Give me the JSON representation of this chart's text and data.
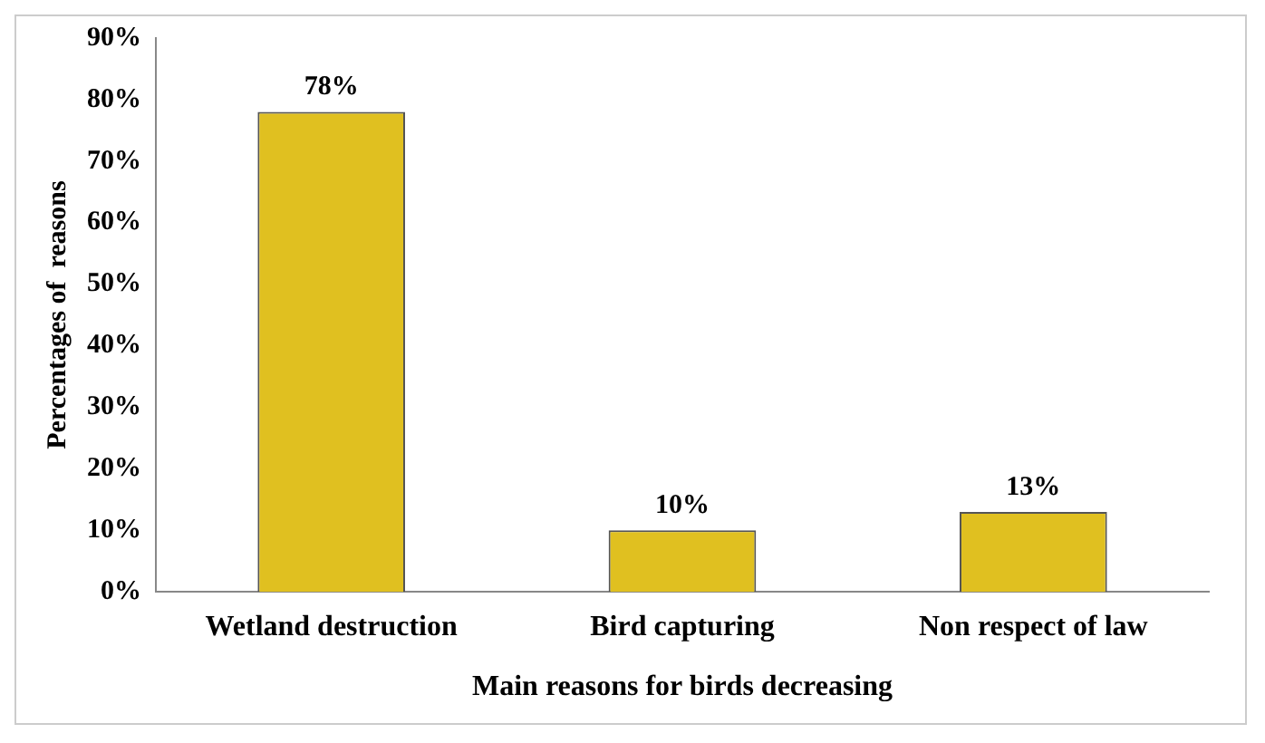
{
  "chart_data": {
    "type": "bar",
    "xlabel": "Main reasons for birds decreasing",
    "ylabel": "Percentages of  reasons",
    "categories": [
      "Wetland destruction",
      "Bird capturing",
      "Non respect of law"
    ],
    "values": [
      78,
      10,
      13
    ],
    "value_labels": [
      "78%",
      "10%",
      "13%"
    ],
    "color": "#e0c020",
    "ylim": [
      0,
      90
    ],
    "yticks": [
      {
        "value": 0,
        "label": "0%"
      },
      {
        "value": 10,
        "label": "10%"
      },
      {
        "value": 20,
        "label": "20%"
      },
      {
        "value": 30,
        "label": "30%"
      },
      {
        "value": 40,
        "label": "40%"
      },
      {
        "value": 50,
        "label": "50%"
      },
      {
        "value": 60,
        "label": "60%"
      },
      {
        "value": 70,
        "label": "70%"
      },
      {
        "value": 80,
        "label": "80%"
      },
      {
        "value": 90,
        "label": "90%"
      }
    ],
    "grid": false,
    "legend": false
  }
}
